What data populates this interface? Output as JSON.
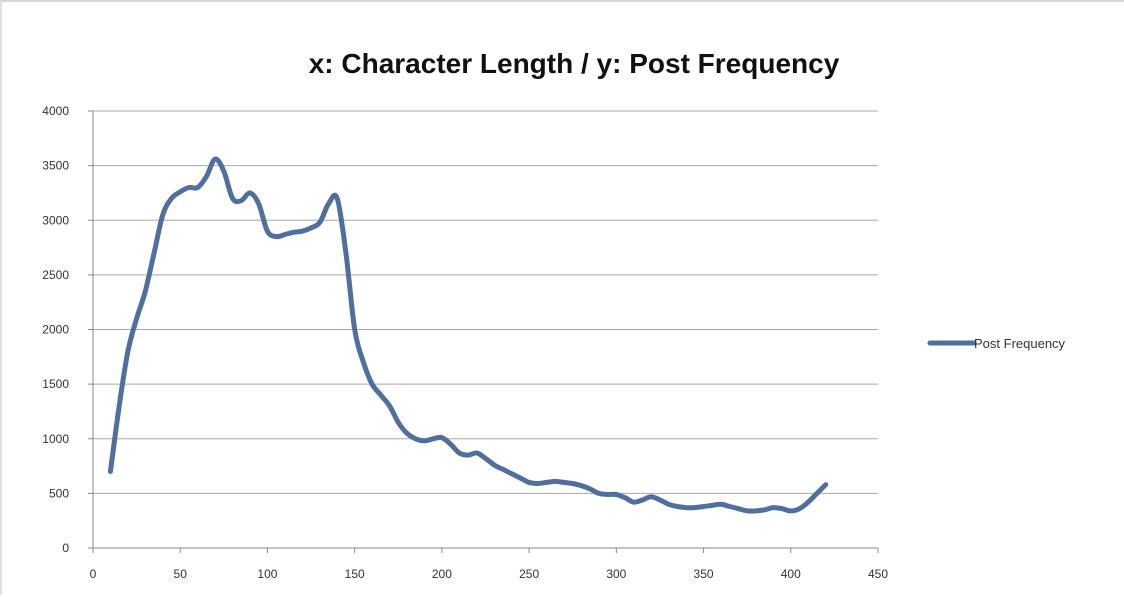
{
  "chart_data": {
    "type": "line",
    "title": "x: Character Length / y: Post Frequency",
    "xlabel": "",
    "ylabel": "",
    "xlim": [
      0,
      450
    ],
    "ylim": [
      0,
      4000
    ],
    "x_ticks": [
      0,
      50,
      100,
      150,
      200,
      250,
      300,
      350,
      400,
      450
    ],
    "y_ticks": [
      0,
      500,
      1000,
      1500,
      2000,
      2500,
      3000,
      3500,
      4000
    ],
    "grid": true,
    "legend_position": "right",
    "series": [
      {
        "name": "Post Frequency",
        "color": "#4f6f9f",
        "points": [
          [
            10,
            700
          ],
          [
            15,
            1300
          ],
          [
            20,
            1800
          ],
          [
            25,
            2100
          ],
          [
            30,
            2350
          ],
          [
            35,
            2700
          ],
          [
            40,
            3050
          ],
          [
            45,
            3200
          ],
          [
            50,
            3260
          ],
          [
            55,
            3300
          ],
          [
            60,
            3300
          ],
          [
            65,
            3400
          ],
          [
            70,
            3560
          ],
          [
            75,
            3450
          ],
          [
            80,
            3200
          ],
          [
            85,
            3180
          ],
          [
            90,
            3250
          ],
          [
            95,
            3150
          ],
          [
            100,
            2900
          ],
          [
            105,
            2850
          ],
          [
            110,
            2870
          ],
          [
            115,
            2890
          ],
          [
            120,
            2900
          ],
          [
            125,
            2930
          ],
          [
            130,
            2980
          ],
          [
            135,
            3150
          ],
          [
            140,
            3200
          ],
          [
            145,
            2700
          ],
          [
            150,
            2000
          ],
          [
            155,
            1700
          ],
          [
            160,
            1500
          ],
          [
            165,
            1400
          ],
          [
            170,
            1300
          ],
          [
            175,
            1150
          ],
          [
            180,
            1050
          ],
          [
            185,
            1000
          ],
          [
            190,
            980
          ],
          [
            195,
            1000
          ],
          [
            200,
            1010
          ],
          [
            205,
            950
          ],
          [
            210,
            870
          ],
          [
            215,
            850
          ],
          [
            220,
            870
          ],
          [
            225,
            820
          ],
          [
            230,
            760
          ],
          [
            235,
            720
          ],
          [
            240,
            680
          ],
          [
            245,
            640
          ],
          [
            250,
            600
          ],
          [
            255,
            590
          ],
          [
            260,
            600
          ],
          [
            265,
            610
          ],
          [
            270,
            600
          ],
          [
            275,
            590
          ],
          [
            280,
            570
          ],
          [
            285,
            540
          ],
          [
            290,
            500
          ],
          [
            295,
            490
          ],
          [
            300,
            490
          ],
          [
            305,
            460
          ],
          [
            310,
            420
          ],
          [
            315,
            440
          ],
          [
            320,
            470
          ],
          [
            325,
            440
          ],
          [
            330,
            400
          ],
          [
            335,
            380
          ],
          [
            340,
            370
          ],
          [
            345,
            370
          ],
          [
            350,
            380
          ],
          [
            355,
            390
          ],
          [
            360,
            400
          ],
          [
            365,
            380
          ],
          [
            370,
            360
          ],
          [
            375,
            340
          ],
          [
            380,
            340
          ],
          [
            385,
            350
          ],
          [
            390,
            370
          ],
          [
            395,
            360
          ],
          [
            400,
            340
          ],
          [
            405,
            360
          ],
          [
            410,
            420
          ],
          [
            415,
            500
          ],
          [
            420,
            580
          ]
        ]
      }
    ]
  }
}
